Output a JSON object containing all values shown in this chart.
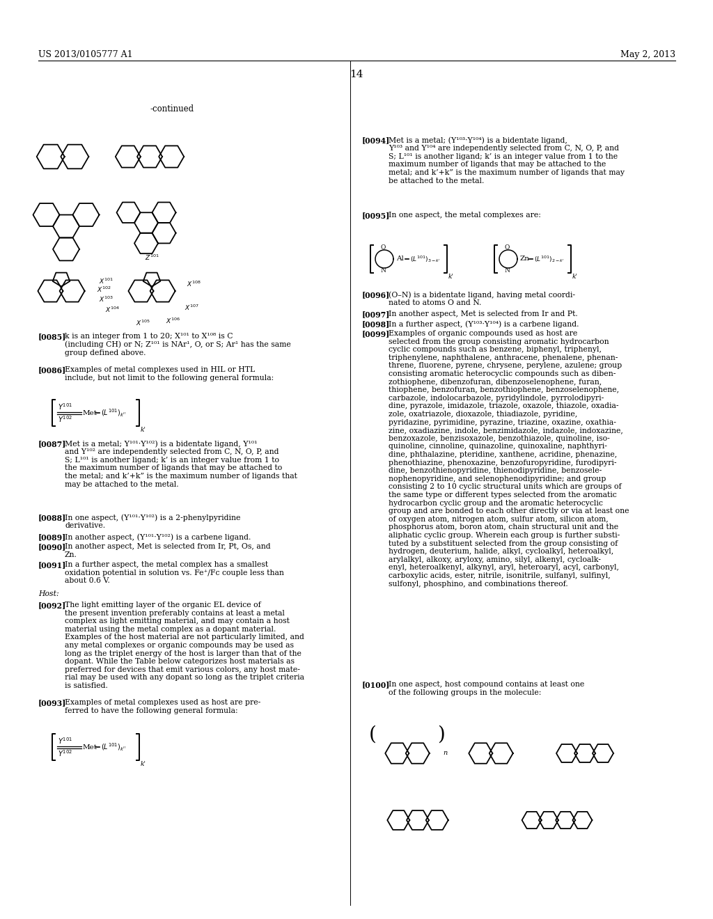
{
  "bg_color": "#ffffff",
  "header_left": "US 2013/0105777 A1",
  "header_right": "May 2, 2013",
  "page_number": "14",
  "continued_label": "-continued"
}
